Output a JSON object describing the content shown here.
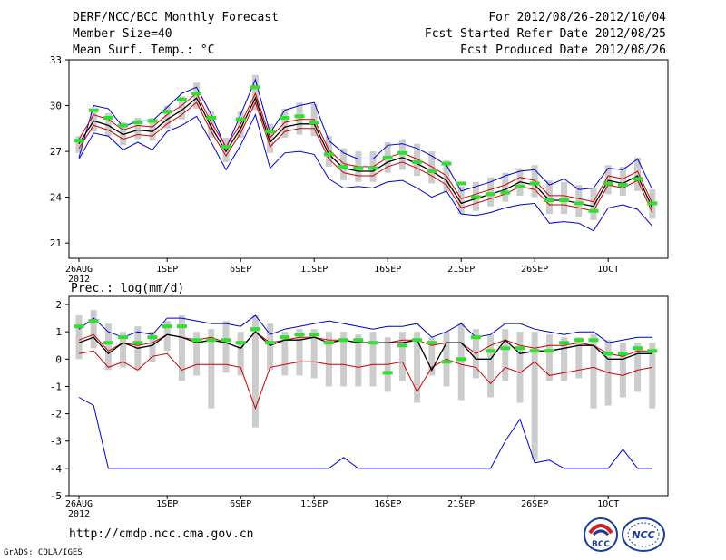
{
  "header": {
    "title": "DERF/NCC/BCC Monthly Forecast",
    "member_size": "Member Size=40",
    "variable": "Mean Surf. Temp.: °C",
    "forecast_period": "For 2012/08/26-2012/10/04",
    "started_refer": "Fcst Started Refer Date 2012/08/25",
    "produced": "Fcst Produced Date 2012/08/26"
  },
  "footer": {
    "url": "http://cmdp.ncc.cma.gov.cn",
    "grads": "GrADS: COLA/IGES",
    "logo_left_text": "BCC",
    "logo_right_text": "NCC"
  },
  "colors": {
    "max_line": "#0000cc",
    "min_line": "#0000cc",
    "mean_line": "#000000",
    "band_line": "#cc0000",
    "observed_bar": "#33dd33",
    "spread_box": "#cccccc"
  },
  "chart_data": [
    {
      "type": "line",
      "name": "temperature",
      "title": "Mean Surf. Temp.: °C",
      "ylim": [
        20,
        33
      ],
      "yticks": [
        21,
        24,
        27,
        30,
        33
      ],
      "xlabels": [
        "26AUG",
        "1SEP",
        "6SEP",
        "11SEP",
        "16SEP",
        "21SEP",
        "26SEP",
        "1OCT"
      ],
      "xlabel_days": [
        1,
        7,
        12,
        17,
        22,
        27,
        32,
        37
      ],
      "year_label": "2012",
      "days": 40,
      "series": [
        {
          "name": "max",
          "values": [
            26.6,
            30.0,
            29.8,
            28.6,
            29.0,
            29.0,
            29.9,
            30.8,
            31.2,
            29.4,
            27.2,
            29.4,
            31.7,
            28.2,
            29.7,
            30.0,
            30.2,
            27.7,
            26.9,
            26.5,
            26.5,
            27.4,
            27.5,
            27.2,
            26.7,
            26.1,
            24.4,
            24.7,
            25.0,
            25.4,
            25.7,
            25.8,
            24.8,
            25.2,
            24.5,
            24.6,
            25.9,
            25.8,
            26.5,
            24.5
          ]
        },
        {
          "name": "upper",
          "values": [
            27.8,
            29.4,
            29.1,
            28.4,
            28.7,
            28.6,
            29.4,
            30.0,
            30.8,
            28.9,
            27.3,
            28.8,
            30.8,
            27.9,
            28.9,
            29.1,
            29.1,
            27.1,
            26.2,
            26.0,
            26.0,
            26.6,
            26.9,
            26.5,
            26.0,
            25.4,
            23.9,
            24.2,
            24.5,
            24.8,
            25.3,
            25.1,
            24.1,
            24.1,
            23.9,
            23.7,
            25.4,
            25.2,
            25.7,
            23.6
          ]
        },
        {
          "name": "mean",
          "values": [
            27.5,
            29.0,
            28.7,
            28.1,
            28.4,
            28.3,
            29.1,
            29.7,
            30.5,
            28.6,
            27.0,
            28.5,
            30.5,
            27.6,
            28.6,
            28.8,
            28.8,
            26.8,
            25.9,
            25.7,
            25.7,
            26.3,
            26.6,
            26.2,
            25.7,
            25.1,
            23.6,
            23.9,
            24.2,
            24.5,
            25.0,
            24.8,
            23.8,
            23.8,
            23.6,
            23.4,
            25.1,
            24.9,
            25.4,
            23.3
          ]
        },
        {
          "name": "lower",
          "values": [
            27.2,
            28.7,
            28.4,
            27.8,
            28.1,
            28.0,
            28.8,
            29.4,
            30.2,
            28.3,
            26.7,
            28.2,
            30.2,
            27.3,
            28.3,
            28.5,
            28.5,
            26.5,
            25.6,
            25.4,
            25.4,
            26.0,
            26.3,
            25.9,
            25.4,
            24.8,
            23.3,
            23.6,
            23.9,
            24.2,
            24.7,
            24.5,
            23.5,
            23.5,
            23.3,
            23.1,
            24.8,
            24.6,
            25.1,
            23.0
          ]
        },
        {
          "name": "min",
          "values": [
            26.5,
            28.2,
            28.0,
            27.1,
            27.6,
            27.1,
            28.3,
            28.7,
            29.3,
            27.6,
            25.8,
            27.4,
            29.4,
            25.9,
            26.9,
            27.0,
            26.8,
            25.2,
            24.6,
            24.7,
            24.6,
            25.0,
            25.1,
            24.6,
            24.0,
            24.4,
            22.9,
            22.8,
            23.0,
            23.3,
            23.5,
            23.6,
            22.3,
            22.4,
            22.3,
            21.8,
            23.3,
            23.5,
            23.2,
            22.1
          ]
        },
        {
          "name": "observed",
          "values": [
            27.7,
            29.7,
            29.2,
            28.7,
            28.9,
            29.0,
            29.6,
            30.4,
            30.8,
            29.2,
            27.3,
            29.1,
            31.2,
            28.3,
            29.2,
            29.3,
            28.9,
            26.8,
            26.0,
            25.9,
            25.9,
            26.6,
            26.9,
            26.3,
            25.7,
            26.2,
            24.9,
            24.0,
            24.2,
            24.3,
            24.7,
            24.9,
            23.8,
            23.8,
            23.6,
            23.1,
            24.9,
            24.8,
            25.2,
            23.6
          ]
        },
        {
          "name": "spread_top",
          "values": [
            28.0,
            29.8,
            29.5,
            28.9,
            29.2,
            29.2,
            30.0,
            30.6,
            31.5,
            29.6,
            27.9,
            29.6,
            32.0,
            28.8,
            29.8,
            30.2,
            30.1,
            28.0,
            27.2,
            27.0,
            27.0,
            27.6,
            27.8,
            27.5,
            27.0,
            26.4,
            24.7,
            25.0,
            25.3,
            25.6,
            25.9,
            26.1,
            25.1,
            25.0,
            24.8,
            24.6,
            26.1,
            26.0,
            26.6,
            24.5
          ]
        },
        {
          "name": "spread_bottom",
          "values": [
            26.9,
            28.3,
            28.0,
            27.4,
            27.8,
            27.7,
            28.5,
            29.1,
            29.8,
            27.9,
            26.3,
            27.9,
            29.7,
            26.9,
            27.9,
            28.1,
            28.0,
            26.0,
            25.1,
            25.0,
            25.0,
            25.6,
            25.8,
            25.4,
            24.9,
            24.4,
            22.9,
            23.1,
            23.4,
            23.7,
            24.1,
            24.0,
            22.9,
            22.9,
            22.7,
            22.5,
            24.2,
            24.1,
            24.4,
            22.6
          ]
        }
      ]
    },
    {
      "type": "line",
      "name": "precipitation",
      "title": "Prec.: log(mm/d)",
      "ylim": [
        -5,
        2.3
      ],
      "yticks": [
        -5,
        -4,
        -3,
        -2,
        -1,
        0,
        1,
        2
      ],
      "xlabels": [
        "26AUG",
        "1SEP",
        "6SEP",
        "11SEP",
        "16SEP",
        "21SEP",
        "26SEP",
        "1OCT"
      ],
      "xlabel_days": [
        1,
        7,
        12,
        17,
        22,
        27,
        32,
        37
      ],
      "year_label": "2012",
      "days": 40,
      "series": [
        {
          "name": "max",
          "values": [
            1.1,
            1.5,
            1.0,
            0.8,
            1.0,
            0.9,
            1.5,
            1.5,
            1.4,
            1.3,
            1.3,
            1.2,
            1.6,
            0.9,
            1.1,
            1.2,
            1.3,
            1.4,
            1.3,
            1.2,
            1.1,
            1.2,
            1.2,
            1.3,
            0.8,
            1.0,
            1.3,
            0.8,
            0.9,
            1.3,
            1.3,
            1.1,
            1.0,
            0.9,
            1.0,
            1.0,
            0.6,
            0.7,
            0.8,
            0.8
          ]
        },
        {
          "name": "upper",
          "values": [
            0.7,
            0.9,
            0.3,
            0.6,
            0.5,
            0.6,
            0.9,
            0.8,
            0.7,
            0.8,
            0.6,
            0.4,
            1.0,
            0.6,
            0.7,
            0.8,
            0.8,
            0.7,
            0.7,
            0.6,
            0.6,
            0.6,
            0.7,
            0.7,
            0.5,
            0.6,
            0.6,
            0.2,
            0.5,
            0.7,
            0.5,
            0.4,
            0.5,
            0.5,
            0.6,
            0.5,
            0.2,
            0.1,
            0.3,
            0.3
          ]
        },
        {
          "name": "mean",
          "values": [
            0.6,
            0.8,
            0.2,
            0.6,
            0.4,
            0.5,
            0.9,
            0.8,
            0.6,
            0.7,
            0.6,
            0.4,
            1.0,
            0.5,
            0.7,
            0.7,
            0.8,
            0.6,
            0.7,
            0.6,
            0.6,
            0.6,
            0.6,
            0.7,
            -0.4,
            0.6,
            0.6,
            0.0,
            0.0,
            0.7,
            0.2,
            0.3,
            0.3,
            0.4,
            0.5,
            0.5,
            0.0,
            0.0,
            0.2,
            0.2
          ]
        },
        {
          "name": "lower",
          "values": [
            0.2,
            0.3,
            -0.3,
            -0.1,
            -0.4,
            0.1,
            0.2,
            -0.4,
            -0.2,
            -0.2,
            -0.2,
            -0.3,
            -1.8,
            -0.3,
            -0.2,
            -0.1,
            -0.1,
            -0.2,
            -0.2,
            -0.3,
            -0.2,
            -0.2,
            -0.1,
            -1.2,
            -0.3,
            0.0,
            -0.2,
            -0.3,
            -0.9,
            -0.3,
            -0.5,
            -0.1,
            -0.6,
            -0.5,
            -0.4,
            -0.3,
            -0.5,
            -0.6,
            -0.4,
            -0.3
          ]
        },
        {
          "name": "min",
          "values": [
            -1.4,
            -1.7,
            -4.0,
            -4.0,
            -4.0,
            -4.0,
            -4.0,
            -4.0,
            -4.0,
            -4.0,
            -4.0,
            -4.0,
            -4.0,
            -4.0,
            -4.0,
            -4.0,
            -4.0,
            -4.0,
            -3.6,
            -4.0,
            -4.0,
            -4.0,
            -4.0,
            -4.0,
            -4.0,
            -4.0,
            -4.0,
            -4.0,
            -4.0,
            -3.0,
            -2.2,
            -3.8,
            -3.7,
            -4.0,
            -4.0,
            -4.0,
            -4.0,
            -3.3,
            -4.0,
            -4.0
          ]
        },
        {
          "name": "observed",
          "values": [
            1.2,
            1.4,
            0.6,
            0.8,
            0.6,
            0.8,
            1.2,
            1.2,
            0.7,
            0.7,
            0.7,
            0.6,
            1.1,
            0.6,
            0.8,
            0.9,
            0.9,
            0.6,
            0.7,
            0.7,
            0.6,
            -0.5,
            0.5,
            0.7,
            0.6,
            -0.1,
            0.0,
            0.8,
            0.3,
            0.4,
            0.4,
            0.3,
            0.3,
            0.6,
            0.7,
            0.7,
            0.2,
            0.2,
            0.4,
            0.3
          ]
        },
        {
          "name": "spread_top",
          "values": [
            1.6,
            1.8,
            1.3,
            1.0,
            1.2,
            1.0,
            1.4,
            1.6,
            1.0,
            1.1,
            1.4,
            1.0,
            1.6,
            1.3,
            1.0,
            1.1,
            1.1,
            1.0,
            1.0,
            0.9,
            1.0,
            0.8,
            1.0,
            1.0,
            0.8,
            1.0,
            1.3,
            1.1,
            0.9,
            1.1,
            1.0,
            1.0,
            0.9,
            0.8,
            0.8,
            0.9,
            0.7,
            0.6,
            0.6,
            0.6
          ]
        },
        {
          "name": "spread_bottom",
          "values": [
            0.0,
            0.4,
            -0.4,
            -0.3,
            -0.4,
            -0.1,
            0.3,
            -0.8,
            -0.6,
            -1.8,
            -0.5,
            -0.6,
            -2.5,
            -0.4,
            -0.6,
            -0.6,
            -0.7,
            -1.0,
            -1.0,
            -1.0,
            -1.0,
            -1.2,
            -0.8,
            -1.6,
            -0.6,
            -1.0,
            -1.5,
            -0.7,
            -1.4,
            -0.8,
            -1.6,
            -3.7,
            -0.8,
            -0.8,
            -0.7,
            -1.8,
            -1.7,
            -1.4,
            -1.2,
            -1.8
          ]
        }
      ]
    }
  ]
}
